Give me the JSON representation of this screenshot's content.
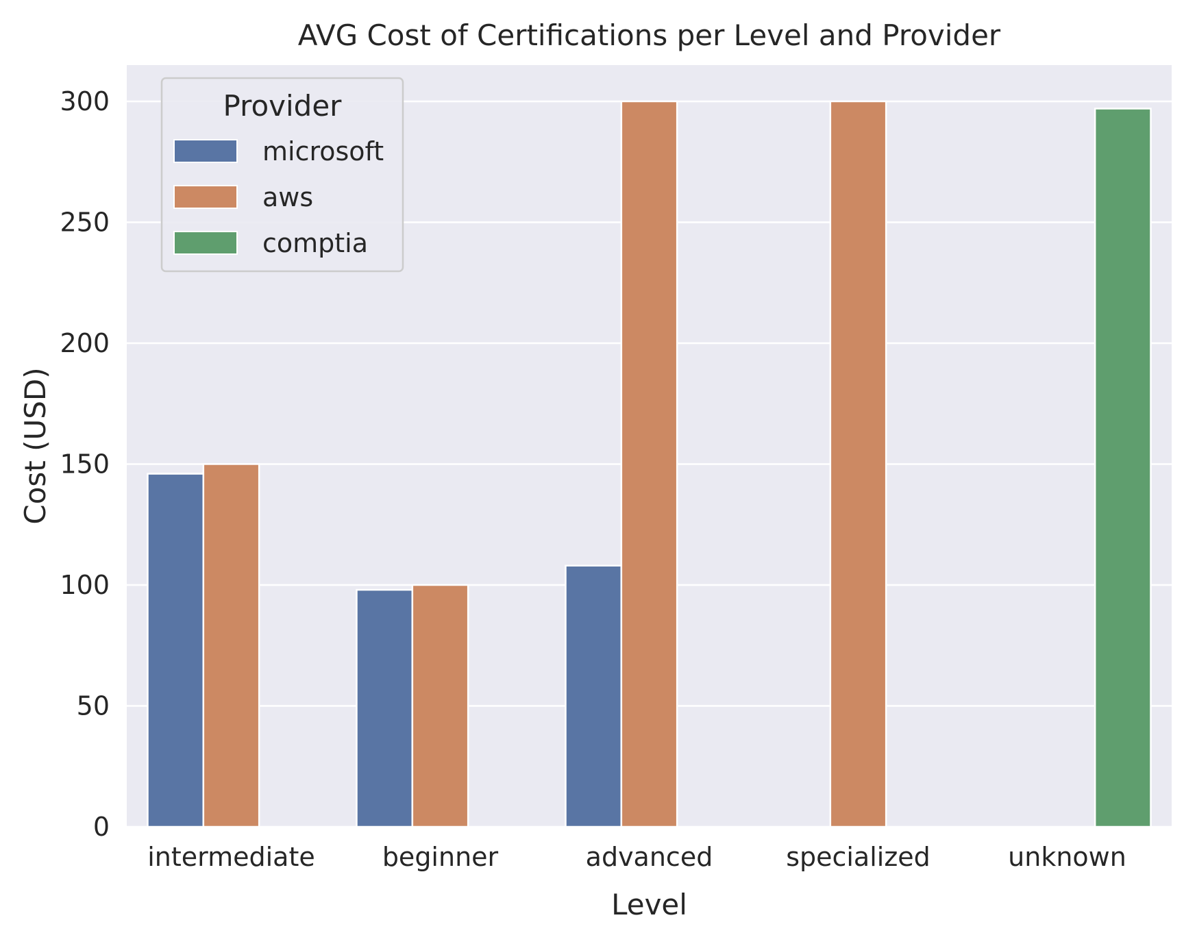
{
  "chart_data": {
    "type": "bar",
    "title": "AVG Cost of Certifications per Level and Provider",
    "xlabel": "Level",
    "ylabel": "Cost (USD)",
    "categories": [
      "intermediate",
      "beginner",
      "advanced",
      "specialized",
      "unknown"
    ],
    "series": [
      {
        "name": "microsoft",
        "color": "#5975a4",
        "values": [
          146,
          98,
          108,
          null,
          null
        ]
      },
      {
        "name": "aws",
        "color": "#cc8963",
        "values": [
          150,
          100,
          300,
          300,
          null
        ]
      },
      {
        "name": "comptia",
        "color": "#5f9e6e",
        "values": [
          null,
          null,
          null,
          null,
          297
        ]
      }
    ],
    "ylim": [
      0,
      315
    ],
    "yticks": [
      0,
      50,
      100,
      150,
      200,
      250,
      300
    ],
    "grid": true,
    "legend": {
      "title": "Provider",
      "placement": "top-left"
    },
    "background_color": "#eaeaf2"
  }
}
